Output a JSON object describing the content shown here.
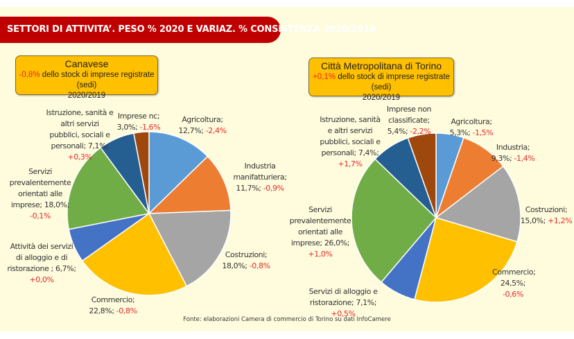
{
  "title": "SETTORI DI ATTIVITA’. PESO % 2020 E VARIAZ. % CONSISTENZA 2020/2019",
  "source": "Fonte: elaborazioni Camera di commercio di Torino su dati InfoCamere",
  "colors": [
    "#5B9BD5",
    "#ED7D31",
    "#A5A5A5",
    "#FFC000",
    "#4472C4",
    "#70AD47",
    "#255E91",
    "#9E480E"
  ],
  "chart_data": [
    {
      "type": "pie",
      "title": "Canavese",
      "subtitle_change": "-0,8%",
      "subtitle_text": "dello stock di imprese registrate (sedi)",
      "subtitle_period": "2020/2019",
      "slices": [
        {
          "name": "Agricoltura;",
          "share": 12.7,
          "share_label": "12,7%;",
          "change": "-2,4%"
        },
        {
          "name": "Industria manifatturiera;",
          "share": 11.7,
          "share_label": "11,7%;",
          "change": "-0,9%"
        },
        {
          "name": "Costruzioni;",
          "share": 18.0,
          "share_label": "18,0%;",
          "change": "-0,8%"
        },
        {
          "name": "Commercio;",
          "share": 22.8,
          "share_label": "22,8%;",
          "change": "-0,8%"
        },
        {
          "name": "Attività dei servizi di alloggio e di ristorazione ;",
          "share": 6.7,
          "share_label": "6,7%;",
          "change": "+0,0%"
        },
        {
          "name": "Servizi prevalentemente orientati alle imprese;",
          "share": 18.0,
          "share_label": "18,0%;",
          "change": "-0,1%"
        },
        {
          "name": "Istruzione, sanità e altri servizi pubblici, sociali e personali;",
          "share": 7.1,
          "share_label": "7,1%;",
          "change": "+0,3%"
        },
        {
          "name": "Imprese nc;",
          "share": 3.0,
          "share_label": "3,0%;",
          "change": "-1,6%"
        }
      ]
    },
    {
      "type": "pie",
      "title": "Città Metropolitana di Torino",
      "subtitle_change": "+0,1%",
      "subtitle_text": "dello stock di imprese registrate (sedi)",
      "subtitle_period": "2020/2019",
      "slices": [
        {
          "name": "Agricoltura;",
          "share": 5.3,
          "share_label": "5,3%;",
          "change": "-1,5%"
        },
        {
          "name": "Industria;",
          "share": 9.3,
          "share_label": "9,3%;",
          "change": "-1,4%"
        },
        {
          "name": "Costruzioni;",
          "share": 15.0,
          "share_label": "15,0%;",
          "change": "+1,2%"
        },
        {
          "name": "Commercio;",
          "share": 24.5,
          "share_label": "24,5%;",
          "change": "-0,6%"
        },
        {
          "name": "Servizi di alloggio e ristorazione;",
          "share": 7.1,
          "share_label": "7,1%;",
          "change": "+0,5%"
        },
        {
          "name": "Servizi prevalentemente orientati alle imprese;",
          "share": 26.0,
          "share_label": "26,0%;",
          "change": "+1,0%"
        },
        {
          "name": "Istruzione, sanità e altri servizi pubblici, sociali e personali;",
          "share": 7.4,
          "share_label": "7,4%;",
          "change": "+1,7%"
        },
        {
          "name": "Imprese non classificate;",
          "share": 5.4,
          "share_label": "5,4%;",
          "change": "-2,2%"
        }
      ]
    }
  ]
}
